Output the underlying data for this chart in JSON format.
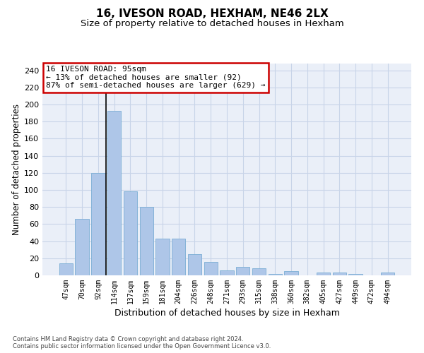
{
  "title1": "16, IVESON ROAD, HEXHAM, NE46 2LX",
  "title2": "Size of property relative to detached houses in Hexham",
  "xlabel": "Distribution of detached houses by size in Hexham",
  "ylabel": "Number of detached properties",
  "bar_labels": [
    "47sqm",
    "70sqm",
    "92sqm",
    "114sqm",
    "137sqm",
    "159sqm",
    "181sqm",
    "204sqm",
    "226sqm",
    "248sqm",
    "271sqm",
    "293sqm",
    "315sqm",
    "338sqm",
    "360sqm",
    "382sqm",
    "405sqm",
    "427sqm",
    "449sqm",
    "472sqm",
    "494sqm"
  ],
  "bar_values": [
    14,
    66,
    120,
    193,
    98,
    80,
    43,
    43,
    25,
    16,
    6,
    10,
    8,
    2,
    5,
    0,
    3,
    3,
    2,
    0,
    3
  ],
  "bar_color": "#aec6e8",
  "bar_edge_color": "#7aadd4",
  "vline_x_index": 2,
  "vline_color": "#000000",
  "annotation_text": "16 IVESON ROAD: 95sqm\n← 13% of detached houses are smaller (92)\n87% of semi-detached houses are larger (629) →",
  "annotation_box_color": "#ffffff",
  "annotation_box_edge": "#cc0000",
  "annotation_fontsize": 8,
  "yticks": [
    0,
    20,
    40,
    60,
    80,
    100,
    120,
    140,
    160,
    180,
    200,
    220,
    240
  ],
  "ylim": [
    0,
    248
  ],
  "grid_color": "#c8d4e8",
  "background_color": "#eaeff8",
  "footer_text": "Contains HM Land Registry data © Crown copyright and database right 2024.\nContains public sector information licensed under the Open Government Licence v3.0.",
  "title1_fontsize": 11,
  "title2_fontsize": 9.5,
  "xlabel_fontsize": 9,
  "ylabel_fontsize": 8.5,
  "footer_fontsize": 6
}
